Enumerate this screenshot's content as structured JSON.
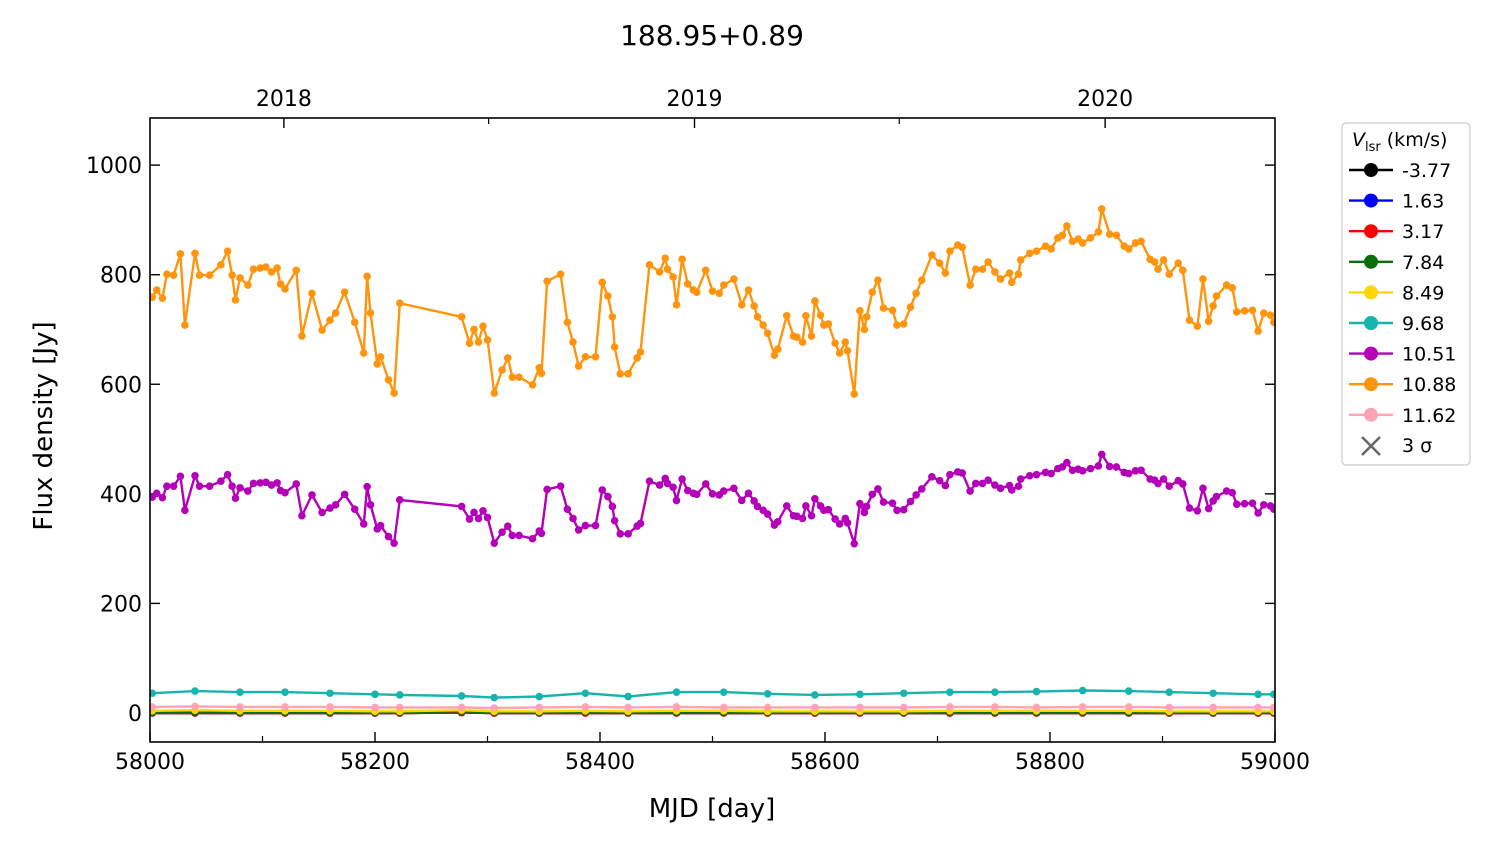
{
  "chart_data": {
    "type": "line",
    "title": "188.95+0.89",
    "xlabel": "MJD [day]",
    "ylabel": "Flux density [Jy]",
    "xlim": [
      58000,
      59000
    ],
    "ylim": [
      -53,
      1086
    ],
    "grid": false,
    "x_ticks": [
      58000,
      58200,
      58400,
      58600,
      58800,
      59000
    ],
    "x_tick_labels": [
      "58000",
      "58200",
      "58400",
      "58600",
      "58800",
      "59000"
    ],
    "x_minor_ticks": [
      58100,
      58300,
      58500,
      58700,
      58900
    ],
    "y_ticks": [
      0,
      200,
      400,
      600,
      800,
      1000
    ],
    "y_tick_labels": [
      "0",
      "200",
      "400",
      "600",
      "800",
      "1000"
    ],
    "top_axis": {
      "ticks": [
        58119,
        58484,
        58849
      ],
      "tick_labels": [
        "2018",
        "2019",
        "2020"
      ],
      "minor_ticks": [
        58301,
        58666
      ]
    },
    "legend": {
      "title_main": "V",
      "title_sub": "lsr",
      "title_unit": " (km/s)",
      "placement": "outside-right",
      "sigma_label": "3 σ"
    },
    "x_main": [
      58002,
      58006,
      58011,
      58015,
      58021,
      58027,
      58031,
      58040,
      58044,
      58053,
      58063,
      58069,
      58073,
      58076,
      58080,
      58087,
      58092,
      58098,
      58103,
      58108,
      58113,
      58116,
      58120,
      58130,
      58135,
      58144,
      58153,
      58160,
      58165,
      58173,
      58182,
      58190,
      58193,
      58196,
      58202,
      58205,
      58212,
      58217,
      58222,
      58277,
      58284,
      58288,
      58292,
      58296,
      58300,
      58306,
      58313,
      58318,
      58322,
      58328,
      58340,
      58346,
      58348,
      58353,
      58365,
      58371,
      58376,
      58381,
      58387,
      58396,
      58402,
      58407,
      58411,
      58413,
      58418,
      58425,
      58433,
      58436,
      58444,
      58453,
      58458,
      58460,
      58465,
      58468,
      58473,
      58478,
      58483,
      58486,
      58494,
      58500,
      58506,
      58510,
      58519,
      58526,
      58532,
      58537,
      58540,
      58545,
      58549,
      58555,
      58558,
      58566,
      58572,
      58575,
      58580,
      58583,
      58588,
      58591,
      58596,
      58599,
      58603,
      58609,
      58613,
      58618,
      58620,
      58626,
      58631,
      58635,
      58637,
      58642,
      58647,
      58652,
      58660,
      58664,
      58670,
      58676,
      58681,
      58686,
      58695,
      58702,
      58707,
      58711,
      58718,
      58722,
      58729,
      58734,
      58740,
      58745,
      58751,
      58756,
      58764,
      58766,
      58772,
      58774,
      58782,
      58788,
      58796,
      58801,
      58807,
      58811,
      58815,
      58820,
      58825,
      58829,
      58836,
      58843,
      58846,
      58853,
      58859,
      58866,
      58870,
      58876,
      58881,
      58889,
      58893,
      58896,
      58901,
      58906,
      58914,
      58918,
      58924,
      58931,
      58936,
      58941,
      58945,
      58948,
      58957,
      58962,
      58966,
      58973,
      58980,
      58985,
      58990,
      58996,
      58999
    ],
    "x_low": [
      58002,
      58040,
      58080,
      58120,
      58160,
      58200,
      58222,
      58277,
      58306,
      58346,
      58387,
      58425,
      58468,
      58510,
      58549,
      58591,
      58631,
      58670,
      58711,
      58751,
      58788,
      58829,
      58870,
      58906,
      58945,
      58985,
      58999
    ],
    "series": [
      {
        "name": "-3.77",
        "color": "#000000",
        "x_key": "x_low",
        "values": [
          0,
          0,
          0,
          0,
          0,
          0,
          0,
          1,
          0,
          0,
          0,
          0,
          0,
          0,
          0,
          0,
          0,
          0,
          0,
          0,
          0,
          0,
          0,
          0,
          0,
          0,
          0
        ]
      },
      {
        "name": "1.63",
        "color": "#0000ff",
        "x_key": "x_low",
        "values": [
          0,
          0,
          0,
          0,
          0,
          0,
          0,
          1,
          0,
          0,
          0,
          0,
          0,
          0,
          0,
          0,
          0,
          0,
          0,
          0,
          0,
          0,
          0,
          0,
          0,
          0,
          0
        ]
      },
      {
        "name": "3.17",
        "color": "#ff0000",
        "x_key": "x_low",
        "values": [
          0,
          0,
          0,
          0,
          0,
          0,
          0,
          1,
          0,
          0,
          0,
          0,
          0,
          0,
          0,
          0,
          0,
          0,
          0,
          0,
          0,
          0,
          0,
          0,
          0,
          0,
          0
        ]
      },
      {
        "name": "7.84",
        "color": "#0a6e0a",
        "x_key": "x_low",
        "values": [
          1,
          2,
          1,
          1,
          1,
          1,
          1,
          3,
          1,
          1,
          2,
          1,
          1,
          1,
          1,
          1,
          1,
          1,
          2,
          1,
          1,
          2,
          1,
          1,
          1,
          1,
          1
        ]
      },
      {
        "name": "8.49",
        "color": "#ffd700",
        "x_key": "x_low",
        "values": [
          4,
          5,
          4,
          4,
          4,
          3,
          3,
          5,
          3,
          3,
          4,
          3,
          4,
          4,
          3,
          3,
          3,
          3,
          4,
          4,
          4,
          4,
          4,
          3,
          3,
          3,
          3
        ]
      },
      {
        "name": "9.68",
        "color": "#17b3ad",
        "x_key": "x_low",
        "values": [
          36,
          40,
          38,
          38,
          36,
          34,
          33,
          31,
          28,
          30,
          36,
          30,
          38,
          38,
          35,
          33,
          34,
          36,
          38,
          38,
          39,
          41,
          40,
          38,
          36,
          34,
          34
        ]
      },
      {
        "name": "10.51",
        "color": "#b400b8",
        "x_key": "x_main",
        "values": [
          394,
          401,
          393,
          414,
          414,
          432,
          370,
          433,
          414,
          414,
          423,
          435,
          414,
          392,
          411,
          405,
          419,
          420,
          421,
          416,
          420,
          406,
          402,
          418,
          360,
          398,
          366,
          374,
          380,
          399,
          372,
          345,
          413,
          380,
          336,
          342,
          322,
          310,
          389,
          377,
          354,
          366,
          355,
          369,
          357,
          310,
          330,
          341,
          324,
          324,
          318,
          332,
          328,
          408,
          414,
          372,
          355,
          334,
          342,
          342,
          407,
          395,
          377,
          351,
          327,
          327,
          341,
          346,
          423,
          416,
          428,
          419,
          412,
          388,
          427,
          406,
          401,
          399,
          418,
          400,
          398,
          405,
          410,
          388,
          401,
          387,
          377,
          370,
          363,
          343,
          349,
          378,
          360,
          359,
          355,
          378,
          360,
          391,
          378,
          370,
          371,
          354,
          345,
          355,
          347,
          309,
          382,
          366,
          377,
          399,
          409,
          385,
          383,
          370,
          371,
          386,
          398,
          409,
          431,
          424,
          415,
          435,
          440,
          438,
          405,
          419,
          419,
          425,
          416,
          410,
          415,
          407,
          414,
          427,
          433,
          435,
          439,
          437,
          446,
          449,
          457,
          443,
          445,
          442,
          446,
          451,
          472,
          450,
          449,
          439,
          437,
          442,
          443,
          427,
          425,
          419,
          427,
          414,
          424,
          418,
          374,
          369,
          410,
          373,
          387,
          395,
          405,
          402,
          381,
          382,
          383,
          365,
          380,
          378,
          372
        ]
      },
      {
        "name": "10.88",
        "color": "#ff950e",
        "x_key": "x_main",
        "values": [
          759,
          772,
          757,
          801,
          799,
          838,
          708,
          839,
          799,
          799,
          818,
          843,
          799,
          754,
          794,
          781,
          810,
          812,
          814,
          805,
          812,
          783,
          774,
          808,
          688,
          766,
          699,
          717,
          730,
          768,
          713,
          657,
          797,
          730,
          637,
          650,
          608,
          584,
          748,
          723,
          675,
          700,
          677,
          706,
          681,
          584,
          626,
          648,
          613,
          613,
          599,
          630,
          620,
          788,
          801,
          713,
          677,
          633,
          650,
          650,
          786,
          761,
          723,
          668,
          619,
          619,
          648,
          659,
          818,
          805,
          830,
          810,
          796,
          745,
          828,
          783,
          772,
          768,
          808,
          770,
          766,
          781,
          792,
          745,
          772,
          743,
          723,
          708,
          693,
          653,
          664,
          725,
          688,
          686,
          677,
          725,
          688,
          752,
          726,
          708,
          710,
          675,
          657,
          677,
          661,
          582,
          734,
          700,
          723,
          768,
          790,
          739,
          735,
          708,
          710,
          741,
          766,
          790,
          836,
          821,
          803,
          843,
          854,
          850,
          781,
          810,
          810,
          823,
          805,
          792,
          803,
          786,
          801,
          827,
          839,
          843,
          852,
          847,
          867,
          872,
          889,
          861,
          865,
          858,
          867,
          878,
          920,
          874,
          872,
          852,
          847,
          858,
          861,
          828,
          823,
          810,
          827,
          801,
          821,
          808,
          717,
          706,
          792,
          715,
          743,
          761,
          781,
          776,
          732,
          734,
          735,
          697,
          730,
          726,
          713
        ]
      },
      {
        "name": "11.62",
        "color": "#ffa3b5",
        "x_key": "x_low",
        "values": [
          11,
          12,
          11,
          11,
          11,
          10,
          10,
          10,
          9,
          10,
          11,
          10,
          11,
          10,
          10,
          10,
          10,
          10,
          11,
          11,
          10,
          11,
          11,
          10,
          10,
          10,
          10
        ]
      }
    ],
    "three_sigma": {
      "color": "#666666",
      "x_key": "x_low",
      "values": [
        -1,
        -1,
        -1,
        -1,
        -1,
        -1,
        -1,
        -1,
        -1,
        -1,
        -1,
        -1,
        -1,
        -1,
        -1,
        -1,
        -1,
        -1,
        -1,
        -1,
        -1,
        -1,
        -1,
        -1,
        -1,
        -1,
        -1
      ]
    }
  }
}
